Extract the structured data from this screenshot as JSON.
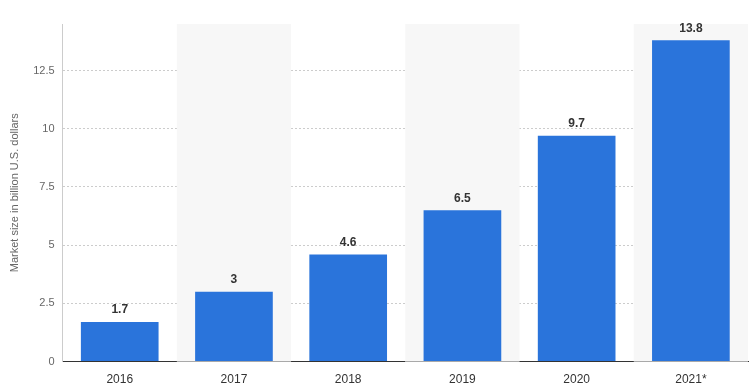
{
  "chart_data": {
    "type": "bar",
    "y_label": "Market size in billion U.S. dollars",
    "categories": [
      "2016",
      "2017",
      "2018",
      "2019",
      "2020",
      "2021*"
    ],
    "values": [
      1.7,
      3,
      4.6,
      6.5,
      9.7,
      13.8
    ],
    "color": "#2a74db",
    "ylim": [
      0,
      14.5
    ],
    "yticks": [
      0,
      2.5,
      5,
      7.5,
      10,
      12.5
    ],
    "grid": true,
    "data_labels": true
  }
}
